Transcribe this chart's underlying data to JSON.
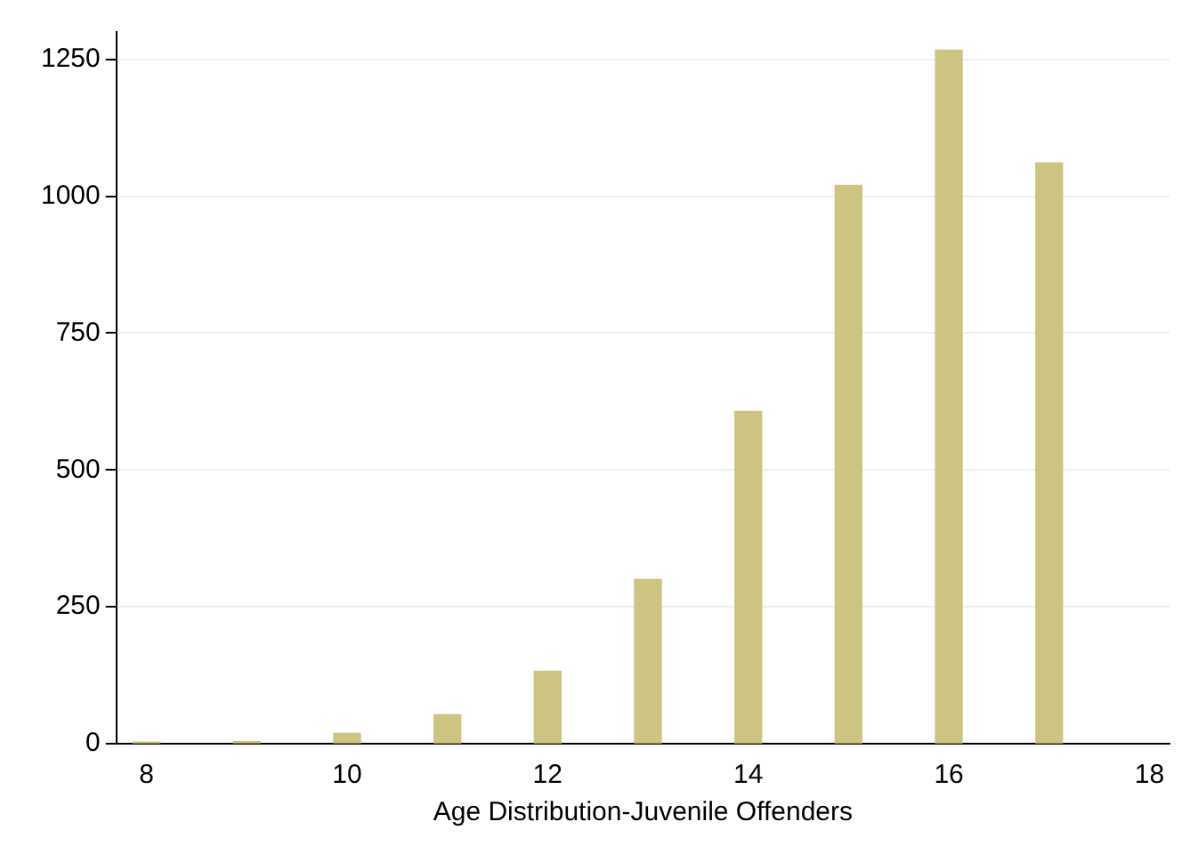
{
  "chart_data": {
    "type": "bar",
    "xlabel": "Age Distribution-Juvenile Offenders",
    "x": [
      8,
      9,
      10,
      11,
      12,
      13,
      14,
      15,
      16,
      17
    ],
    "values": [
      3,
      4,
      19,
      53,
      132,
      300,
      607,
      1020,
      1267,
      1061
    ],
    "color": "#cdc481",
    "xlim": [
      7.7,
      18.2
    ],
    "xticks": [
      8,
      10,
      12,
      14,
      16,
      18
    ],
    "ylim": [
      0,
      1300
    ],
    "yticks": [
      0,
      250,
      500,
      750,
      1000,
      1250
    ],
    "grid": "y"
  }
}
